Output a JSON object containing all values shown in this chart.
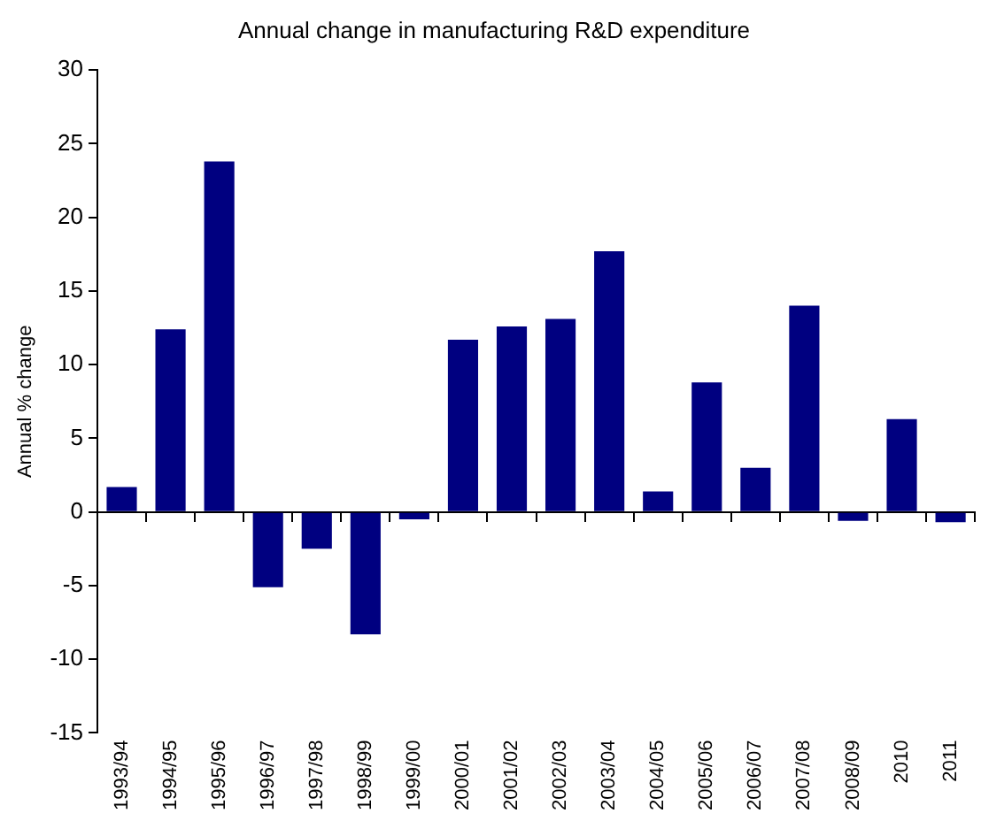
{
  "chart_data": {
    "type": "bar",
    "title": "Annual change in manufacturing R&D expenditure",
    "ylabel": "Annual % change",
    "categories": [
      "1993/94",
      "1994/95",
      "1995/96",
      "1996/97",
      "1997/98",
      "1998/99",
      "1999/00",
      "2000/01",
      "2001/02",
      "2002/03",
      "2003/04",
      "2004/05",
      "2005/06",
      "2006/07",
      "2007/08",
      "2008/09",
      "2010",
      "2011"
    ],
    "values": [
      1.7,
      12.4,
      23.8,
      -5.1,
      -2.5,
      -8.3,
      -0.5,
      11.7,
      12.6,
      13.1,
      17.7,
      1.4,
      8.8,
      3.0,
      14.0,
      -0.6,
      6.3,
      -0.7
    ],
    "color": "#000080",
    "ylim": [
      -15,
      30
    ],
    "yticks": [
      -15,
      -10,
      -5,
      0,
      5,
      10,
      15,
      20,
      25,
      30
    ],
    "legend": false
  }
}
